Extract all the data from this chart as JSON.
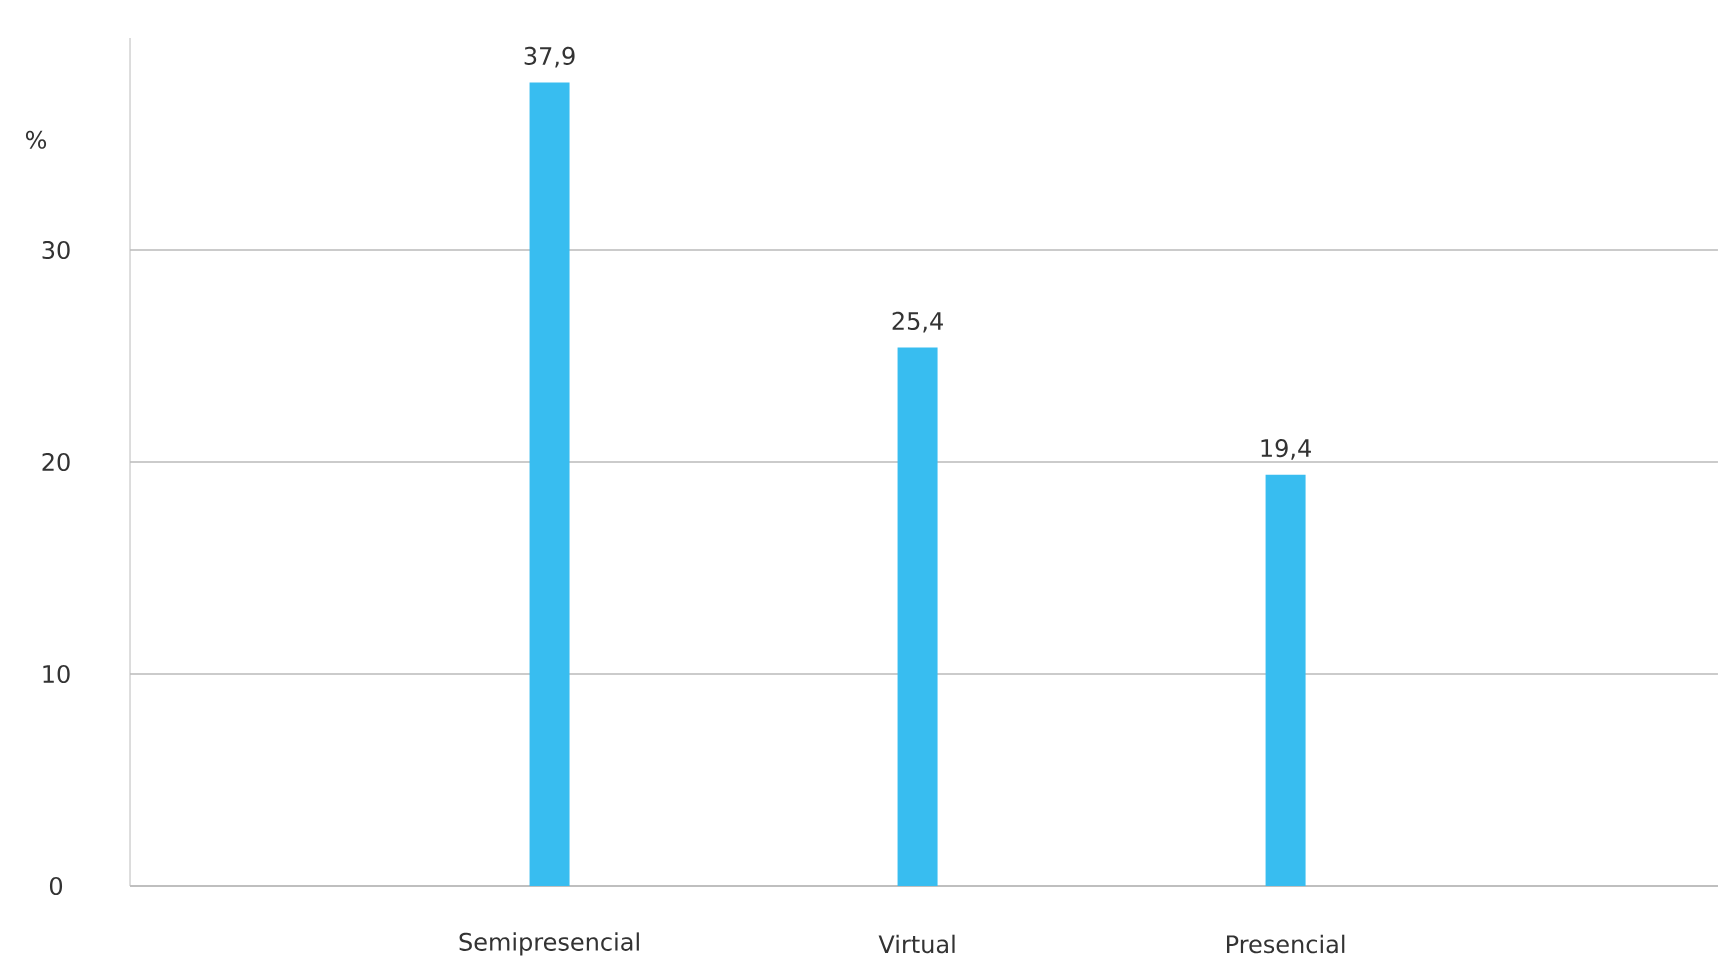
{
  "chart_data": {
    "type": "bar",
    "ylabel": "%",
    "categories": [
      "Semipresencial",
      "Virtual",
      "Presencial"
    ],
    "values": [
      37.9,
      25.4,
      19.4
    ],
    "color": "#38bdf0",
    "ylim": [
      0,
      40
    ],
    "yticks": [
      0,
      10,
      20,
      30
    ],
    "grid": "y",
    "data_labels": true,
    "value_labels": [
      "37,9",
      "25,4",
      "19,4"
    ]
  }
}
